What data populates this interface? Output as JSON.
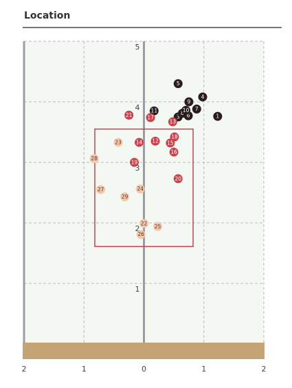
{
  "chart_data": {
    "type": "scatter",
    "title": "Location",
    "x": [
      1.23,
      0.57,
      0.98,
      0.57,
      0.74,
      0.88,
      0.64,
      0.75,
      0.7,
      0.17,
      0.19,
      0.48,
      -0.08,
      0.44,
      0.5,
      0.11,
      0.51,
      -0.16,
      0.57,
      -0.25,
      0.0,
      -0.43,
      -0.06,
      0.23,
      -0.05,
      -0.72,
      -0.83,
      -0.32
    ],
    "y": [
      3.76,
      3.75,
      4.08,
      4.3,
      3.77,
      3.88,
      3.81,
      4.0,
      3.86,
      3.85,
      3.35,
      3.67,
      3.33,
      3.32,
      3.17,
      3.74,
      3.42,
      3.0,
      2.73,
      3.78,
      1.99,
      3.33,
      2.56,
      1.94,
      1.81,
      2.55,
      3.06,
      2.43
    ],
    "point_labels": [
      "1",
      "3",
      "4",
      "5",
      "6",
      "7",
      "8",
      "9",
      "10",
      "11",
      "12",
      "13",
      "14",
      "15",
      "16",
      "17",
      "18",
      "19",
      "20",
      "21",
      "22",
      "23",
      "24",
      "25",
      "26",
      "27",
      "28",
      "29"
    ],
    "colors": [
      "#2b1d1e",
      "#2b1d1e",
      "#2b1d1e",
      "#2b1d1e",
      "#2b1d1e",
      "#2b1d1e",
      "#2b1d1e",
      "#2b1d1e",
      "#2b1d1e",
      "#2b1d1e",
      "#c8424d",
      "#c8424d",
      "#c8424d",
      "#c8424d",
      "#c8424d",
      "#c8424d",
      "#c8424d",
      "#c8424d",
      "#c8424d",
      "#c8424d",
      "#f3c7ae",
      "#f3c7ae",
      "#f3c7ae",
      "#f3c7ae",
      "#f3c7ae",
      "#f3c7ae",
      "#f3c7ae",
      "#f3c7ae"
    ],
    "xlim": [
      -2,
      2
    ],
    "xticks": [
      {
        "value": -2,
        "label": "2"
      },
      {
        "value": -1,
        "label": "1"
      },
      0,
      1,
      {
        "value": 2,
        "label": "2"
      }
    ],
    "ylim": [
      0,
      5
    ],
    "yticks": [
      1,
      2,
      3,
      4,
      5
    ],
    "grid": true,
    "strike_zone": {
      "xlim": [
        -0.82,
        0.82
      ],
      "ylim": [
        1.61,
        3.55
      ]
    }
  }
}
